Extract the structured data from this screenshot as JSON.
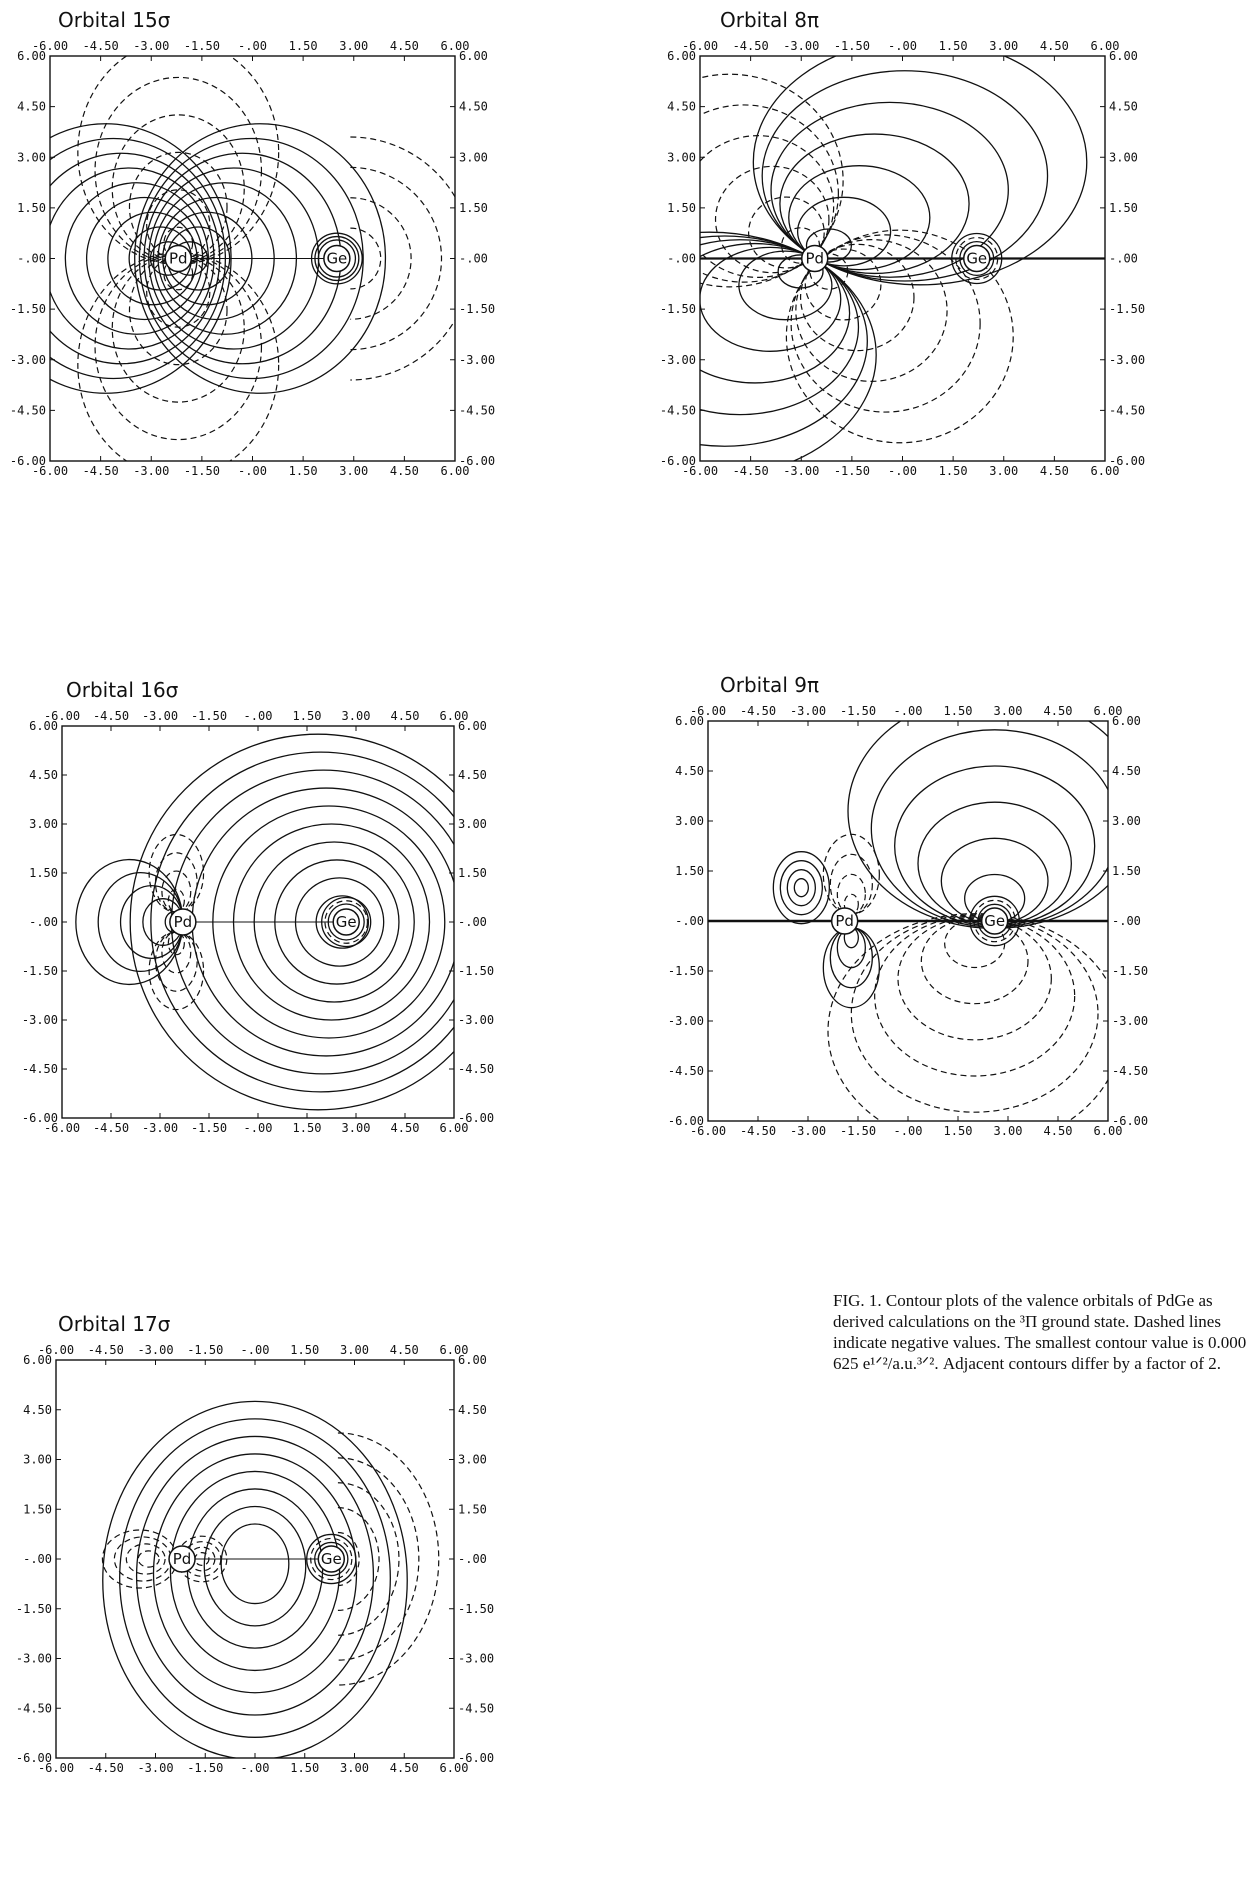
{
  "figure": {
    "caption": "FIG. 1. Contour plots of the valence orbitals of PdGe as derived calculations on the ³Π ground state. Dashed lines indicate negative values. The smallest contour value is 0.000 625 e¹ᐟ²/a.u.³ᐟ². Adjacent contours differ by a factor of 2."
  },
  "axis": {
    "ticks": [
      "-6.00",
      "-4.50",
      "-3.00",
      "-1.50",
      "-.00",
      "1.50",
      "3.00",
      "4.50",
      "6.00"
    ]
  },
  "atoms": {
    "pd": "Pd",
    "ge": "Ge"
  },
  "panels": [
    {
      "id": "p15",
      "title": "Orbital 15σ",
      "style": "p15"
    },
    {
      "id": "p8",
      "title": "Orbital 8π",
      "style": "p8"
    },
    {
      "id": "p16",
      "title": "Orbital 16σ",
      "style": "p16"
    },
    {
      "id": "p9",
      "title": "Orbital 9π",
      "style": "p9"
    },
    {
      "id": "p17",
      "title": "Orbital 17σ",
      "style": "p17"
    }
  ],
  "chart_data": [
    {
      "type": "contour",
      "title": "Orbital 15σ",
      "xlim": [
        -6,
        6
      ],
      "ylim": [
        -6,
        6
      ],
      "grid": false,
      "atoms": [
        "Pd",
        "Ge"
      ]
    },
    {
      "type": "contour",
      "title": "Orbital 8π",
      "xlim": [
        -6,
        6
      ],
      "ylim": [
        -6,
        6
      ],
      "grid": false,
      "atoms": [
        "Pd",
        "Ge"
      ]
    },
    {
      "type": "contour",
      "title": "Orbital 16σ",
      "xlim": [
        -6,
        6
      ],
      "ylim": [
        -6,
        6
      ],
      "grid": false,
      "atoms": [
        "Pd",
        "Ge"
      ]
    },
    {
      "type": "contour",
      "title": "Orbital 9π",
      "xlim": [
        -6,
        6
      ],
      "ylim": [
        -6,
        6
      ],
      "grid": false,
      "atoms": [
        "Pd",
        "Ge"
      ]
    },
    {
      "type": "contour",
      "title": "Orbital 17σ",
      "xlim": [
        -6,
        6
      ],
      "ylim": [
        -6,
        6
      ],
      "grid": false,
      "atoms": [
        "Pd",
        "Ge"
      ]
    }
  ]
}
